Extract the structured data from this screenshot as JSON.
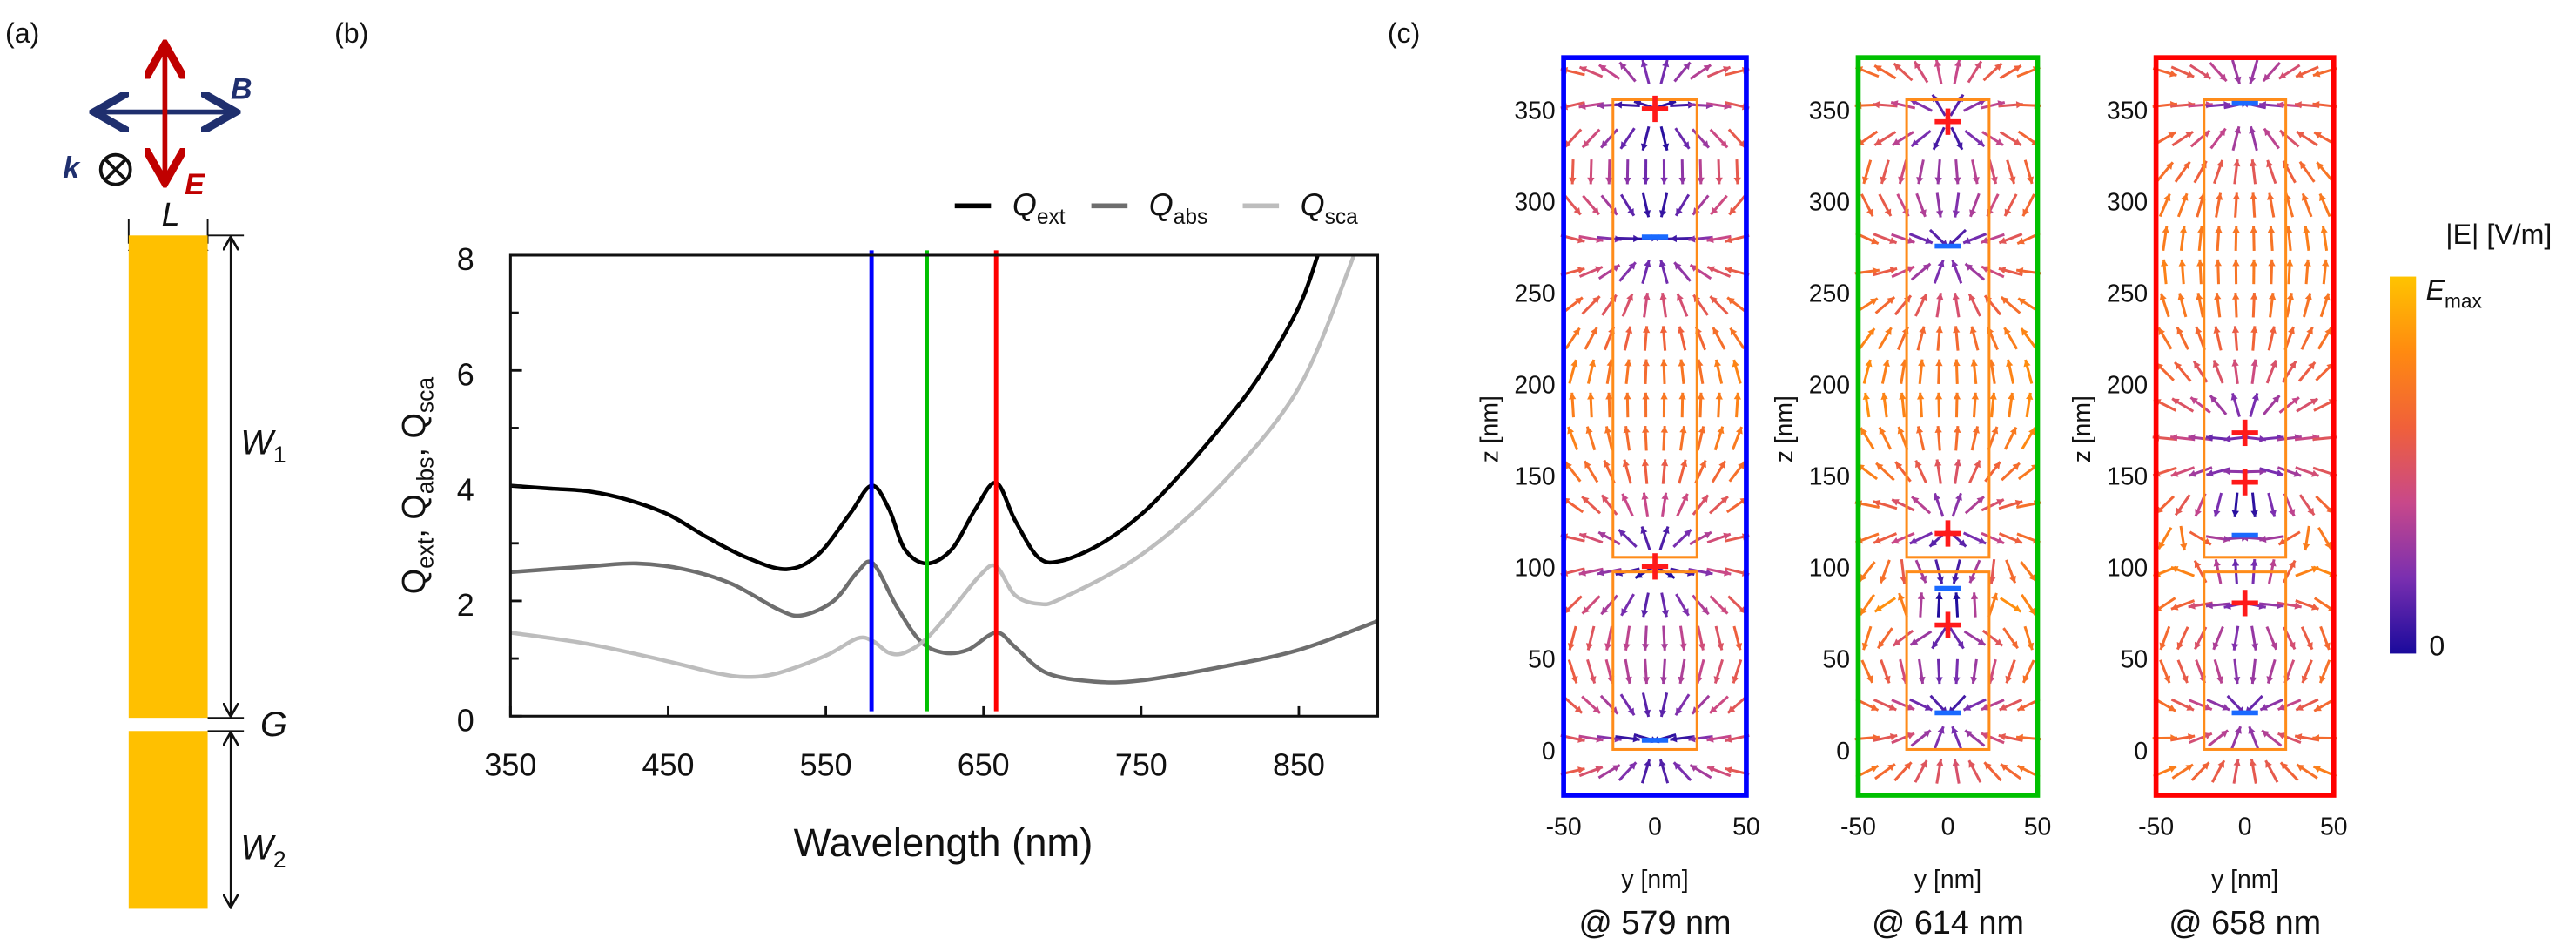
{
  "panel_labels": {
    "a": "(a)",
    "b": "(b)",
    "c": "(c)"
  },
  "schematic": {
    "B": "B",
    "E": "E",
    "k": "k",
    "L": "L",
    "W1": "W",
    "W1_sub": "1",
    "G": "G",
    "W2": "W",
    "W2_sub": "2",
    "colors": {
      "rod": "#ffc000",
      "B_arrow": "#1f2f6e",
      "E_arrow": "#c00000"
    }
  },
  "chart_data": [
    {
      "type": "line",
      "title": "",
      "xlabel": "Wavelength (nm)",
      "ylabel": {
        "parts": [
          [
            "Q",
            "ext"
          ],
          [
            "Q",
            "abs"
          ],
          [
            "Q",
            "sca"
          ]
        ],
        "sep": ", "
      },
      "xlim": [
        350,
        900
      ],
      "ylim": [
        0,
        8
      ],
      "xticks": [
        350,
        450,
        550,
        650,
        750,
        850
      ],
      "yticks": [
        0,
        2,
        4,
        6,
        8
      ],
      "legend_position": "top-right",
      "series": [
        {
          "name": "Q",
          "sub": "ext",
          "color": "#000000",
          "x": [
            350,
            375,
            400,
            425,
            450,
            475,
            500,
            525,
            545,
            565,
            579,
            590,
            600,
            614,
            630,
            645,
            658,
            670,
            685,
            700,
            725,
            750,
            775,
            800,
            825,
            850,
            862
          ],
          "y": [
            4.0,
            3.95,
            3.9,
            3.75,
            3.5,
            3.1,
            2.75,
            2.55,
            2.8,
            3.5,
            4.0,
            3.6,
            2.9,
            2.65,
            2.9,
            3.6,
            4.05,
            3.4,
            2.75,
            2.7,
            3.0,
            3.5,
            4.2,
            5.0,
            5.9,
            7.1,
            8.0
          ]
        },
        {
          "name": "Q",
          "sub": "abs",
          "color": "#6e6e6e",
          "x": [
            350,
            400,
            430,
            460,
            490,
            520,
            535,
            555,
            570,
            580,
            595,
            610,
            625,
            640,
            658,
            670,
            690,
            720,
            750,
            800,
            850,
            900
          ],
          "y": [
            2.5,
            2.6,
            2.65,
            2.55,
            2.3,
            1.85,
            1.75,
            2.0,
            2.5,
            2.65,
            1.9,
            1.3,
            1.1,
            1.15,
            1.45,
            1.2,
            0.75,
            0.6,
            0.62,
            0.85,
            1.15,
            1.65
          ]
        },
        {
          "name": "Q",
          "sub": "sca",
          "color": "#bdbdbd",
          "x": [
            350,
            400,
            450,
            480,
            500,
            520,
            550,
            570,
            580,
            590,
            600,
            614,
            630,
            648,
            658,
            670,
            685,
            700,
            750,
            800,
            850,
            885
          ],
          "y": [
            1.45,
            1.25,
            0.95,
            0.75,
            0.68,
            0.75,
            1.05,
            1.35,
            1.3,
            1.1,
            1.1,
            1.35,
            1.85,
            2.45,
            2.6,
            2.1,
            1.95,
            2.05,
            2.8,
            4.0,
            5.7,
            8.0
          ]
        }
      ],
      "vertical_markers": [
        {
          "x": 579,
          "color": "#0000ff"
        },
        {
          "x": 614,
          "color": "#00c000"
        },
        {
          "x": 658,
          "color": "#ff0000"
        }
      ]
    }
  ],
  "field_maps": {
    "xlabel": "y [nm]",
    "ylabel": "z [nm]",
    "xticks": [
      -50,
      0,
      50
    ],
    "zticks": [
      0,
      50,
      100,
      150,
      200,
      250,
      300,
      350
    ],
    "rods": [
      [
        0,
        97
      ],
      [
        105,
        355
      ]
    ],
    "panels": [
      {
        "caption": "@ 579 nm",
        "frame_color": "#0000ff",
        "charges": [
          {
            "z": 350,
            "sign": "+"
          },
          {
            "z": 280,
            "sign": "−"
          },
          {
            "z": 100,
            "sign": "+"
          },
          {
            "z": 5,
            "sign": "−"
          }
        ]
      },
      {
        "caption": "@ 614 nm",
        "frame_color": "#00c000",
        "charges": [
          {
            "z": 343,
            "sign": "+"
          },
          {
            "z": 275,
            "sign": "−"
          },
          {
            "z": 118,
            "sign": "+"
          },
          {
            "z": 88,
            "sign": "−"
          },
          {
            "z": 68,
            "sign": "+"
          },
          {
            "z": 20,
            "sign": "−"
          }
        ]
      },
      {
        "caption": "@ 658 nm",
        "frame_color": "#ff0000",
        "charges": [
          {
            "z": 353,
            "sign": "−"
          },
          {
            "z": 173,
            "sign": "+"
          },
          {
            "z": 146,
            "sign": "+"
          },
          {
            "z": 117,
            "sign": "−"
          },
          {
            "z": 80,
            "sign": "+"
          },
          {
            "z": 20,
            "sign": "−"
          }
        ]
      }
    ],
    "colorbar": {
      "title": "|E| [V/m]",
      "max_label": "E",
      "max_sub": "max",
      "min_label": "0",
      "colors": [
        "#1a0a9c",
        "#7a2fb0",
        "#c8488a",
        "#f0603a",
        "#ff8a10",
        "#ffc400"
      ]
    }
  }
}
